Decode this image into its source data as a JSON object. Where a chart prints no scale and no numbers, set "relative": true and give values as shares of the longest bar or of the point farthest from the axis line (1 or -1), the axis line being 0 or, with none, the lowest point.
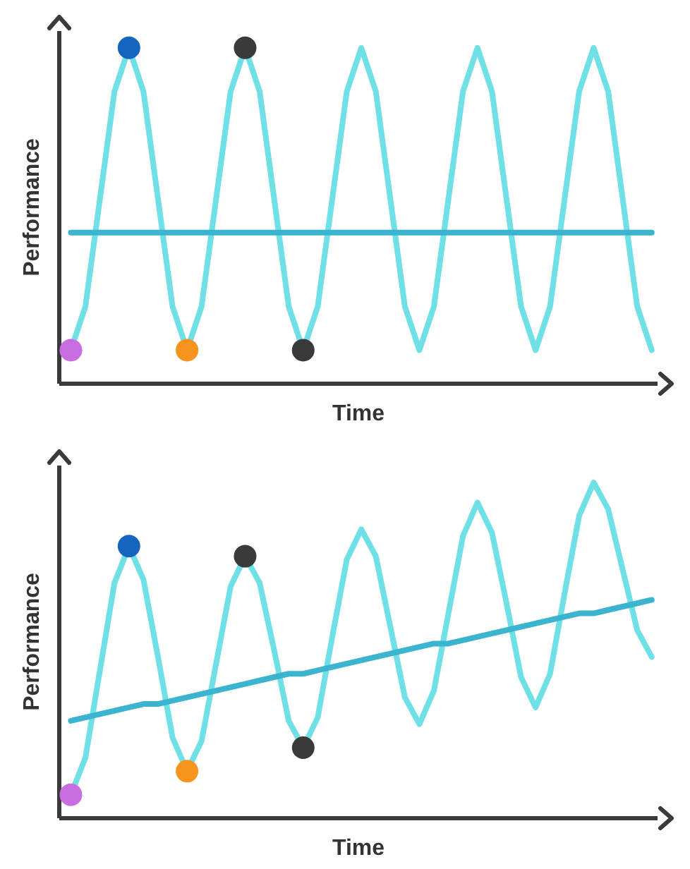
{
  "chart_data": [
    {
      "type": "line",
      "relative": true,
      "xlabel": "Time",
      "ylabel": "Performance",
      "categories": [
        null,
        null,
        null,
        null,
        null,
        null,
        null,
        null,
        null,
        null,
        null,
        null,
        null,
        null,
        null,
        null,
        null,
        null,
        null,
        null,
        null,
        null,
        null,
        null,
        null,
        null,
        null,
        null,
        null,
        null,
        null,
        null,
        null,
        null,
        null,
        null,
        null,
        null,
        null,
        null,
        null
      ],
      "series": [
        {
          "type": "line",
          "color": "#6ee0e6",
          "colors": [
            "#c86ee0",
            null,
            null,
            null,
            "#1565c0",
            null,
            null,
            null,
            "#f7941d",
            null,
            null,
            null,
            "#3a3a3a",
            null,
            null,
            null,
            "#3a3a3a",
            null,
            null,
            null,
            null,
            null,
            null,
            null,
            null,
            null,
            null,
            null,
            null,
            null,
            null,
            null,
            null,
            null,
            null,
            null,
            null,
            null,
            null,
            null,
            null
          ],
          "values": [
            0.1,
            0.23,
            0.55,
            0.87,
            1,
            0.87,
            0.55,
            0.23,
            0.1,
            0.23,
            0.55,
            0.87,
            1,
            0.87,
            0.55,
            0.23,
            0.1,
            0.23,
            0.55,
            0.87,
            1,
            0.87,
            0.55,
            0.23,
            0.1,
            0.23,
            0.55,
            0.87,
            1,
            0.87,
            0.55,
            0.23,
            0.1,
            0.23,
            0.55,
            0.87,
            1,
            0.87,
            0.55,
            0.23,
            0.1
          ]
        },
        {
          "type": "line",
          "color": "#3ab4cf",
          "values": [
            0.45,
            0.45,
            0.45,
            0.45,
            0.45,
            0.45,
            0.45,
            0.45,
            0.45,
            0.45,
            0.45,
            0.45,
            0.45,
            0.45,
            0.45,
            0.45,
            0.45,
            0.45,
            0.45,
            0.45,
            0.45,
            0.45,
            0.45,
            0.45,
            0.45,
            0.45,
            0.45,
            0.45,
            0.45,
            0.45,
            0.45,
            0.45,
            0.45,
            0.45,
            0.45,
            0.45,
            0.45,
            0.45,
            0.45,
            0.45,
            0.45
          ]
        }
      ]
    },
    {
      "type": "line",
      "relative": true,
      "xlabel": "Time",
      "ylabel": "Performance",
      "categories": [
        null,
        null,
        null,
        null,
        null,
        null,
        null,
        null,
        null,
        null,
        null,
        null,
        null,
        null,
        null,
        null,
        null,
        null,
        null,
        null,
        null,
        null,
        null,
        null,
        null,
        null,
        null,
        null,
        null,
        null,
        null,
        null,
        null,
        null,
        null,
        null,
        null,
        null,
        null,
        null,
        null
      ],
      "series": [
        {
          "type": "line",
          "color": "#6ee0e6",
          "colors": [
            "#c86ee0",
            null,
            null,
            null,
            "#1565c0",
            null,
            null,
            null,
            "#f7941d",
            null,
            null,
            null,
            "#3a3a3a",
            null,
            null,
            null,
            "#3a3a3a",
            null,
            null,
            null,
            null,
            null,
            null,
            null,
            null,
            null,
            null,
            null,
            null,
            null,
            null,
            null,
            null,
            null,
            null,
            null,
            null,
            null,
            null,
            null,
            null
          ],
          "values": [
            0.07,
            0.18,
            0.44,
            0.7,
            0.81,
            0.71,
            0.48,
            0.24,
            0.14,
            0.23,
            0.46,
            0.69,
            0.78,
            0.7,
            0.5,
            0.29,
            0.21,
            0.3,
            0.54,
            0.77,
            0.86,
            0.78,
            0.57,
            0.36,
            0.28,
            0.38,
            0.61,
            0.84,
            0.94,
            0.85,
            0.64,
            0.42,
            0.33,
            0.43,
            0.67,
            0.9,
            1,
            0.92,
            0.74,
            0.56,
            0.48
          ]
        },
        {
          "type": "line",
          "color": "#3ab4cf",
          "values": [
            0.29,
            0.3,
            0.31,
            0.32,
            0.33,
            0.34,
            0.34,
            0.35,
            0.36,
            0.37,
            0.38,
            0.39,
            0.4,
            0.41,
            0.42,
            0.43,
            0.43,
            0.44,
            0.45,
            0.46,
            0.47,
            0.48,
            0.49,
            0.5,
            0.51,
            0.52,
            0.52,
            0.53,
            0.54,
            0.55,
            0.56,
            0.57,
            0.58,
            0.59,
            0.6,
            0.61,
            0.61,
            0.62,
            0.63,
            0.64,
            0.65
          ]
        }
      ]
    }
  ]
}
